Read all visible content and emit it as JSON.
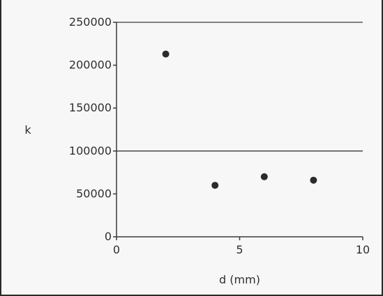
{
  "chart_data": {
    "type": "scatter",
    "title": "",
    "xlabel": "d (mm)",
    "ylabel": "k",
    "xlim": [
      0,
      10
    ],
    "ylim": [
      0,
      250000
    ],
    "x_ticks": [
      0,
      5,
      10
    ],
    "x_tick_labels": [
      "0",
      "5",
      "10"
    ],
    "y_ticks": [
      0,
      50000,
      100000,
      150000,
      200000,
      250000
    ],
    "y_tick_labels": [
      "0",
      "50000",
      "100000",
      "150000",
      "200000",
      "250000"
    ],
    "grid": "horizontal",
    "legend": "none",
    "series": [
      {
        "x": [
          2,
          4,
          6,
          8
        ],
        "y": [
          213000,
          60000,
          70000,
          66000
        ]
      }
    ],
    "colors": {
      "points": "#2b2b2b",
      "lines": "#3a3a3a",
      "text": "#2f2f2f",
      "background": "#f7f7f7"
    }
  }
}
